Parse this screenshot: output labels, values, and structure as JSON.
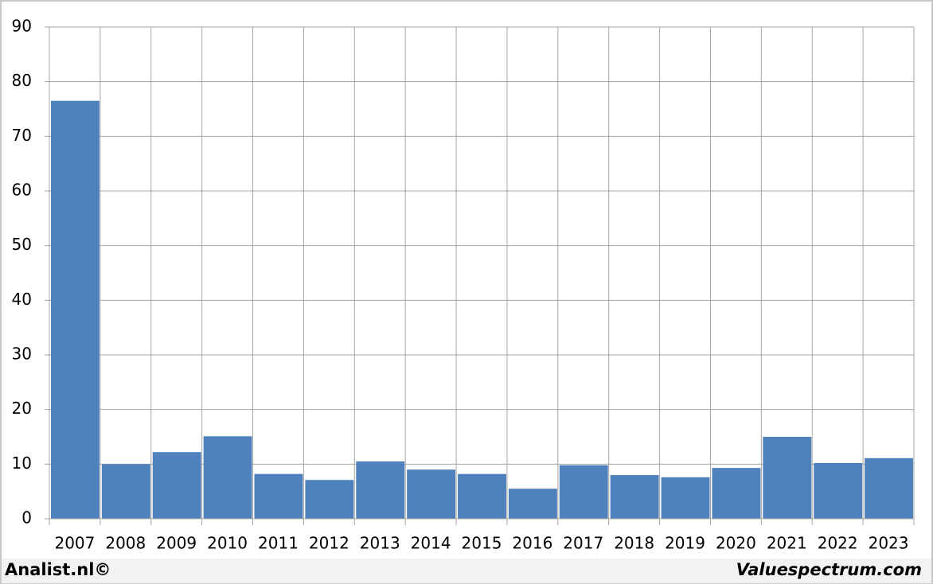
{
  "chart_data": {
    "type": "bar",
    "categories": [
      "2007",
      "2008",
      "2009",
      "2010",
      "2011",
      "2012",
      "2013",
      "2014",
      "2015",
      "2016",
      "2017",
      "2018",
      "2019",
      "2020",
      "2021",
      "2022",
      "2023"
    ],
    "values": [
      76.5,
      10.0,
      12.2,
      15.1,
      8.2,
      7.1,
      10.5,
      9.0,
      8.2,
      5.5,
      9.8,
      8.0,
      7.6,
      9.3,
      15.0,
      10.2,
      11.1
    ],
    "color": "#4f81bd",
    "ylim": [
      0,
      90
    ],
    "yticks": [
      0,
      10,
      20,
      30,
      40,
      50,
      60,
      70,
      80,
      90
    ],
    "grid": true,
    "footer_left": "Analist.nl©",
    "footer_right": "Valuespectrum.com"
  }
}
